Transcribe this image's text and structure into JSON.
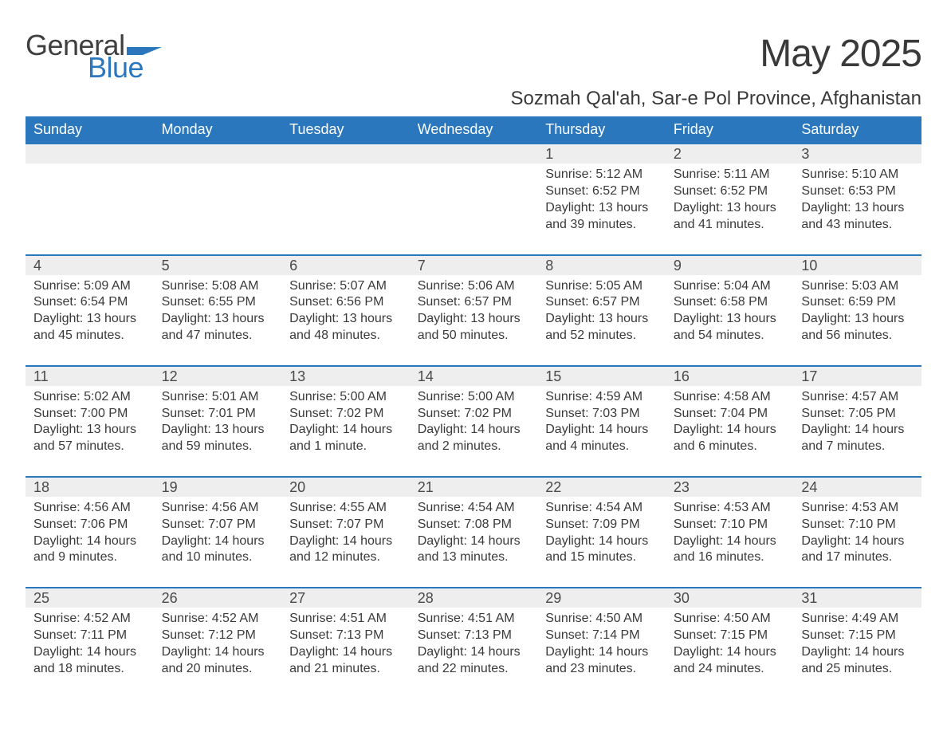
{
  "brand": {
    "word1": "General",
    "word2": "Blue",
    "accent_color": "#2b77bd"
  },
  "title": "May 2025",
  "location": "Sozmah Qal'ah, Sar-e Pol Province, Afghanistan",
  "weekdays": [
    "Sunday",
    "Monday",
    "Tuesday",
    "Wednesday",
    "Thursday",
    "Friday",
    "Saturday"
  ],
  "colors": {
    "header_bg": "#2b77bd",
    "header_text": "#ffffff",
    "row_sep": "#2b77bd",
    "daynum_bg": "#eeeeee",
    "body_bg": "#ffffff",
    "text": "#3a3a3a"
  },
  "weeks": [
    [
      {
        "n": "",
        "lines": []
      },
      {
        "n": "",
        "lines": []
      },
      {
        "n": "",
        "lines": []
      },
      {
        "n": "",
        "lines": []
      },
      {
        "n": "1",
        "lines": [
          "Sunrise: 5:12 AM",
          "Sunset: 6:52 PM",
          "Daylight: 13 hours",
          "and 39 minutes."
        ]
      },
      {
        "n": "2",
        "lines": [
          "Sunrise: 5:11 AM",
          "Sunset: 6:52 PM",
          "Daylight: 13 hours",
          "and 41 minutes."
        ]
      },
      {
        "n": "3",
        "lines": [
          "Sunrise: 5:10 AM",
          "Sunset: 6:53 PM",
          "Daylight: 13 hours",
          "and 43 minutes."
        ]
      }
    ],
    [
      {
        "n": "4",
        "lines": [
          "Sunrise: 5:09 AM",
          "Sunset: 6:54 PM",
          "Daylight: 13 hours",
          "and 45 minutes."
        ]
      },
      {
        "n": "5",
        "lines": [
          "Sunrise: 5:08 AM",
          "Sunset: 6:55 PM",
          "Daylight: 13 hours",
          "and 47 minutes."
        ]
      },
      {
        "n": "6",
        "lines": [
          "Sunrise: 5:07 AM",
          "Sunset: 6:56 PM",
          "Daylight: 13 hours",
          "and 48 minutes."
        ]
      },
      {
        "n": "7",
        "lines": [
          "Sunrise: 5:06 AM",
          "Sunset: 6:57 PM",
          "Daylight: 13 hours",
          "and 50 minutes."
        ]
      },
      {
        "n": "8",
        "lines": [
          "Sunrise: 5:05 AM",
          "Sunset: 6:57 PM",
          "Daylight: 13 hours",
          "and 52 minutes."
        ]
      },
      {
        "n": "9",
        "lines": [
          "Sunrise: 5:04 AM",
          "Sunset: 6:58 PM",
          "Daylight: 13 hours",
          "and 54 minutes."
        ]
      },
      {
        "n": "10",
        "lines": [
          "Sunrise: 5:03 AM",
          "Sunset: 6:59 PM",
          "Daylight: 13 hours",
          "and 56 minutes."
        ]
      }
    ],
    [
      {
        "n": "11",
        "lines": [
          "Sunrise: 5:02 AM",
          "Sunset: 7:00 PM",
          "Daylight: 13 hours",
          "and 57 minutes."
        ]
      },
      {
        "n": "12",
        "lines": [
          "Sunrise: 5:01 AM",
          "Sunset: 7:01 PM",
          "Daylight: 13 hours",
          "and 59 minutes."
        ]
      },
      {
        "n": "13",
        "lines": [
          "Sunrise: 5:00 AM",
          "Sunset: 7:02 PM",
          "Daylight: 14 hours",
          "and 1 minute."
        ]
      },
      {
        "n": "14",
        "lines": [
          "Sunrise: 5:00 AM",
          "Sunset: 7:02 PM",
          "Daylight: 14 hours",
          "and 2 minutes."
        ]
      },
      {
        "n": "15",
        "lines": [
          "Sunrise: 4:59 AM",
          "Sunset: 7:03 PM",
          "Daylight: 14 hours",
          "and 4 minutes."
        ]
      },
      {
        "n": "16",
        "lines": [
          "Sunrise: 4:58 AM",
          "Sunset: 7:04 PM",
          "Daylight: 14 hours",
          "and 6 minutes."
        ]
      },
      {
        "n": "17",
        "lines": [
          "Sunrise: 4:57 AM",
          "Sunset: 7:05 PM",
          "Daylight: 14 hours",
          "and 7 minutes."
        ]
      }
    ],
    [
      {
        "n": "18",
        "lines": [
          "Sunrise: 4:56 AM",
          "Sunset: 7:06 PM",
          "Daylight: 14 hours",
          "and 9 minutes."
        ]
      },
      {
        "n": "19",
        "lines": [
          "Sunrise: 4:56 AM",
          "Sunset: 7:07 PM",
          "Daylight: 14 hours",
          "and 10 minutes."
        ]
      },
      {
        "n": "20",
        "lines": [
          "Sunrise: 4:55 AM",
          "Sunset: 7:07 PM",
          "Daylight: 14 hours",
          "and 12 minutes."
        ]
      },
      {
        "n": "21",
        "lines": [
          "Sunrise: 4:54 AM",
          "Sunset: 7:08 PM",
          "Daylight: 14 hours",
          "and 13 minutes."
        ]
      },
      {
        "n": "22",
        "lines": [
          "Sunrise: 4:54 AM",
          "Sunset: 7:09 PM",
          "Daylight: 14 hours",
          "and 15 minutes."
        ]
      },
      {
        "n": "23",
        "lines": [
          "Sunrise: 4:53 AM",
          "Sunset: 7:10 PM",
          "Daylight: 14 hours",
          "and 16 minutes."
        ]
      },
      {
        "n": "24",
        "lines": [
          "Sunrise: 4:53 AM",
          "Sunset: 7:10 PM",
          "Daylight: 14 hours",
          "and 17 minutes."
        ]
      }
    ],
    [
      {
        "n": "25",
        "lines": [
          "Sunrise: 4:52 AM",
          "Sunset: 7:11 PM",
          "Daylight: 14 hours",
          "and 18 minutes."
        ]
      },
      {
        "n": "26",
        "lines": [
          "Sunrise: 4:52 AM",
          "Sunset: 7:12 PM",
          "Daylight: 14 hours",
          "and 20 minutes."
        ]
      },
      {
        "n": "27",
        "lines": [
          "Sunrise: 4:51 AM",
          "Sunset: 7:13 PM",
          "Daylight: 14 hours",
          "and 21 minutes."
        ]
      },
      {
        "n": "28",
        "lines": [
          "Sunrise: 4:51 AM",
          "Sunset: 7:13 PM",
          "Daylight: 14 hours",
          "and 22 minutes."
        ]
      },
      {
        "n": "29",
        "lines": [
          "Sunrise: 4:50 AM",
          "Sunset: 7:14 PM",
          "Daylight: 14 hours",
          "and 23 minutes."
        ]
      },
      {
        "n": "30",
        "lines": [
          "Sunrise: 4:50 AM",
          "Sunset: 7:15 PM",
          "Daylight: 14 hours",
          "and 24 minutes."
        ]
      },
      {
        "n": "31",
        "lines": [
          "Sunrise: 4:49 AM",
          "Sunset: 7:15 PM",
          "Daylight: 14 hours",
          "and 25 minutes."
        ]
      }
    ]
  ]
}
